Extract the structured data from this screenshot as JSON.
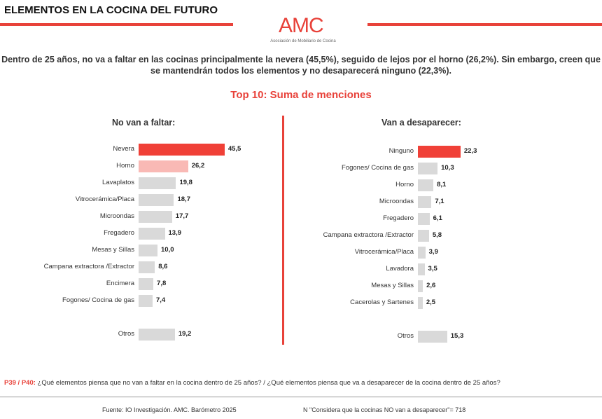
{
  "header": {
    "title": "ELEMENTOS EN LA COCINA DEL FUTURO",
    "logo_text": "AMC",
    "logo_subtitle": "Asociación de Mobiliario de Cocina"
  },
  "summary": "Dentro de 25 años, no va a faltar en las cocinas principalmente la nevera (45,5%), seguido de lejos por el horno (26,2%). Sin embargo, creen que se mantendrán todos los elementos y no desaparecerá ninguno (22,3%).",
  "subtitle": "Top 10: Suma de menciones",
  "colors": {
    "accent": "#f04037",
    "secondary": "#f9b9b5",
    "neutral": "#d9d9d9"
  },
  "chart_data": [
    {
      "type": "bar",
      "orientation": "horizontal",
      "title": "No van a faltar:",
      "categories": [
        "Nevera",
        "Horno",
        "Lavaplatos",
        "Vitrocerámica/Placa",
        "Microondas",
        "Fregadero",
        "Mesas y Sillas",
        "Campana extractora /Extractor",
        "Encimera",
        "Fogones/ Cocina de gas",
        "Otros"
      ],
      "values": [
        45.5,
        26.2,
        19.8,
        18.7,
        17.7,
        13.9,
        10.0,
        8.6,
        7.8,
        7.4,
        19.2
      ],
      "labels": [
        "45,5",
        "26,2",
        "19,8",
        "18,7",
        "17,7",
        "13,9",
        "10,0",
        "8,6",
        "7,8",
        "7,4",
        "19,2"
      ],
      "bar_colors": [
        "#f04037",
        "#f9b9b5",
        "#d9d9d9",
        "#d9d9d9",
        "#d9d9d9",
        "#d9d9d9",
        "#d9d9d9",
        "#d9d9d9",
        "#d9d9d9",
        "#d9d9d9",
        "#d9d9d9"
      ]
    },
    {
      "type": "bar",
      "orientation": "horizontal",
      "title": "Van a desaparecer:",
      "categories": [
        "Ninguno",
        "Fogones/ Cocina de gas",
        "Horno",
        "Microondas",
        "Fregadero",
        "Campana extractora /Extractor",
        "Vitrocerámica/Placa",
        "Lavadora",
        "Mesas y Sillas",
        "Cacerolas y Sartenes",
        "Otros"
      ],
      "values": [
        22.3,
        10.3,
        8.1,
        7.1,
        6.1,
        5.8,
        3.9,
        3.5,
        2.6,
        2.5,
        15.3
      ],
      "labels": [
        "22,3",
        "10,3",
        "8,1",
        "7,1",
        "6,1",
        "5,8",
        "3,9",
        "3,5",
        "2,6",
        "2,5",
        "15,3"
      ],
      "bar_colors": [
        "#f04037",
        "#d9d9d9",
        "#d9d9d9",
        "#d9d9d9",
        "#d9d9d9",
        "#d9d9d9",
        "#d9d9d9",
        "#d9d9d9",
        "#d9d9d9",
        "#d9d9d9",
        "#d9d9d9"
      ]
    }
  ],
  "question": {
    "code": "P39 / P40:",
    "text": " ¿Qué elementos piensa que no van a faltar en la cocina dentro de 25 años? / ¿Qué elementos piensa que va a desaparecer de la cocina dentro de 25 años?"
  },
  "footer": {
    "source": "Fuente: IO Investigación. AMC. Barómetro 2025",
    "n": "N \"Considera que la cocinas NO van a desaparecer\"= 718"
  }
}
